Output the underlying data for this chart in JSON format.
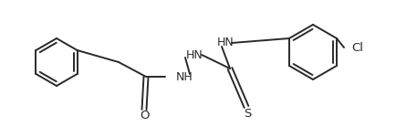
{
  "background_color": "#ffffff",
  "line_color": "#2a2a2a",
  "line_width": 1.4,
  "text_color": "#2a2a2a",
  "font_size": 8.5,
  "figsize": [
    4.34,
    1.5
  ],
  "dpi": 100,
  "atoms": {
    "O_label": "O",
    "S_label": "S",
    "NH1_label": "NH",
    "HN2_label": "HN",
    "HN3_label": "HN",
    "Cl_label": "Cl"
  }
}
